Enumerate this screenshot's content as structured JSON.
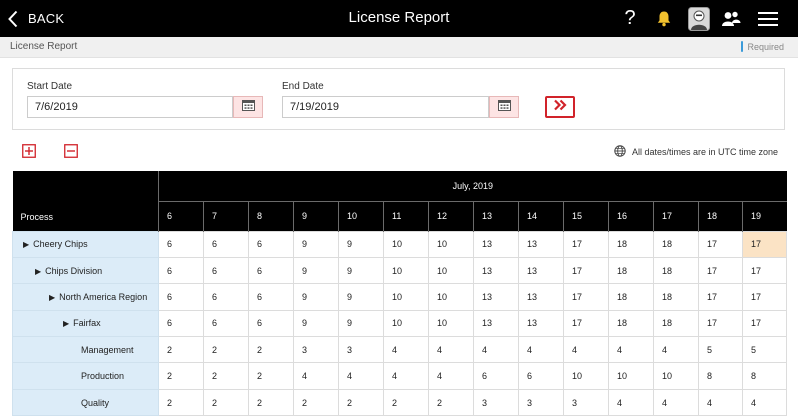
{
  "header": {
    "back_label": "BACK",
    "title": "License Report",
    "help_glyph": "?"
  },
  "subbar": {
    "breadcrumb": "License Report",
    "required_label": "Required"
  },
  "dates": {
    "start_label": "Start Date",
    "start_value": "7/6/2019",
    "end_label": "End Date",
    "end_value": "7/19/2019"
  },
  "timezone_note": "All dates/times are in UTC time zone",
  "table": {
    "process_header": "Process",
    "month_label": "July, 2019",
    "days": [
      "6",
      "7",
      "8",
      "9",
      "10",
      "11",
      "12",
      "13",
      "14",
      "15",
      "16",
      "17",
      "18",
      "19"
    ],
    "rows": [
      {
        "label": "Cheery Chips",
        "level": 0,
        "expandable": true,
        "values": [
          "6",
          "6",
          "6",
          "9",
          "9",
          "10",
          "10",
          "13",
          "13",
          "17",
          "18",
          "18",
          "17",
          "17"
        ]
      },
      {
        "label": "Chips Division",
        "level": 1,
        "expandable": true,
        "values": [
          "6",
          "6",
          "6",
          "9",
          "9",
          "10",
          "10",
          "13",
          "13",
          "17",
          "18",
          "18",
          "17",
          "17"
        ]
      },
      {
        "label": "North America Region",
        "level": 2,
        "expandable": true,
        "values": [
          "6",
          "6",
          "6",
          "9",
          "9",
          "10",
          "10",
          "13",
          "13",
          "17",
          "18",
          "18",
          "17",
          "17"
        ]
      },
      {
        "label": "Fairfax",
        "level": 3,
        "expandable": true,
        "values": [
          "6",
          "6",
          "6",
          "9",
          "9",
          "10",
          "10",
          "13",
          "13",
          "17",
          "18",
          "18",
          "17",
          "17"
        ]
      },
      {
        "label": "Management",
        "level": 4,
        "expandable": false,
        "values": [
          "2",
          "2",
          "2",
          "3",
          "3",
          "4",
          "4",
          "4",
          "4",
          "4",
          "4",
          "4",
          "5",
          "5"
        ]
      },
      {
        "label": "Production",
        "level": 4,
        "expandable": false,
        "values": [
          "2",
          "2",
          "2",
          "4",
          "4",
          "4",
          "4",
          "6",
          "6",
          "10",
          "10",
          "10",
          "8",
          "8"
        ]
      },
      {
        "label": "Quality",
        "level": 4,
        "expandable": false,
        "values": [
          "2",
          "2",
          "2",
          "2",
          "2",
          "2",
          "2",
          "3",
          "3",
          "3",
          "4",
          "4",
          "4",
          "4"
        ]
      }
    ],
    "highlight_color": "#fbe3c5"
  },
  "icons": {
    "back": "chevron-left-icon",
    "help": "help-icon",
    "bell": "bell-icon",
    "avatar": "avatar-icon",
    "people": "people-icon",
    "menu": "hamburger-menu-icon",
    "calendar": "calendar-icon",
    "go": "double-chevron-right-icon",
    "expand_all": "expand-all-icon",
    "collapse_all": "collapse-all-icon",
    "globe": "globe-icon"
  },
  "colors": {
    "topbar": "#000000",
    "accent_red": "#d1232a",
    "process_cell": "#dcecf8",
    "required_mark": "#3a9ad9"
  }
}
